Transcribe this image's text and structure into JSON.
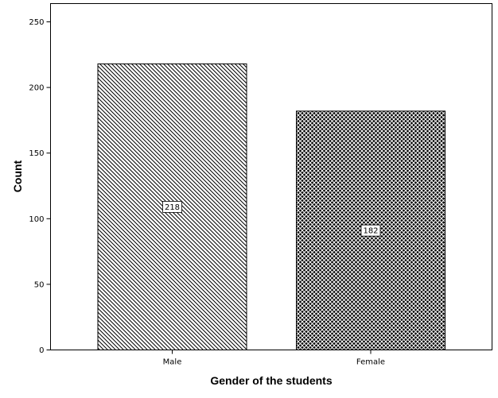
{
  "chart_data": {
    "type": "bar",
    "categories": [
      "Male",
      "Female"
    ],
    "values": [
      218,
      182
    ],
    "data_labels": [
      "218",
      "182"
    ],
    "title": "",
    "xlabel": "Gender of the students",
    "ylabel": "Count",
    "ylim": [
      0,
      250
    ],
    "yticks": [
      0,
      50,
      100,
      150,
      200,
      250
    ],
    "ytick_labels": [
      "0",
      "50",
      "100",
      "150",
      "200",
      "250"
    ],
    "grid": false,
    "legend": "none",
    "bar_fills": [
      "diagonal-hatch",
      "crosshatch"
    ],
    "colors": {
      "bar_outline": "#000000",
      "background": "#ffffff",
      "pattern_ink": "#000000"
    }
  }
}
